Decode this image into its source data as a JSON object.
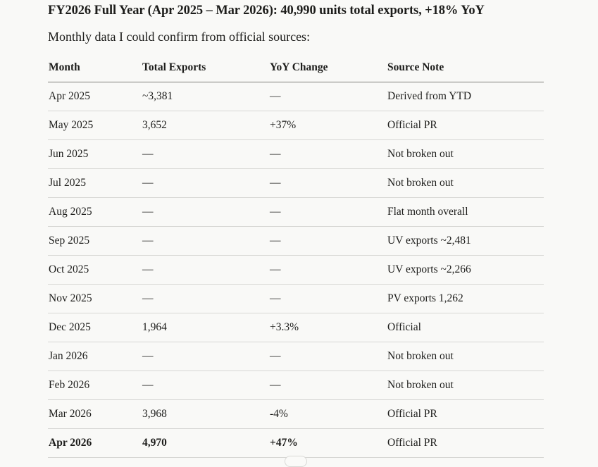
{
  "heading": "FY2026 Full Year (Apr 2025 – Mar 2026): 40,990 units total exports, +18% YoY",
  "intro": "Monthly data I could confirm from official sources:",
  "table": {
    "headers": [
      "Month",
      "Total Exports",
      "YoY Change",
      "Source Note"
    ],
    "rows": [
      {
        "month": "Apr 2025",
        "exports": "~3,381",
        "yoy": "—",
        "note": "Derived from YTD"
      },
      {
        "month": "May 2025",
        "exports": "3,652",
        "yoy": "+37%",
        "note": "Official PR"
      },
      {
        "month": "Jun 2025",
        "exports": "—",
        "yoy": "—",
        "note": "Not broken out"
      },
      {
        "month": "Jul 2025",
        "exports": "—",
        "yoy": "—",
        "note": "Not broken out"
      },
      {
        "month": "Aug 2025",
        "exports": "—",
        "yoy": "—",
        "note": "Flat month overall"
      },
      {
        "month": "Sep 2025",
        "exports": "—",
        "yoy": "—",
        "note": "UV exports ~2,481"
      },
      {
        "month": "Oct 2025",
        "exports": "—",
        "yoy": "—",
        "note": "UV exports ~2,266"
      },
      {
        "month": "Nov 2025",
        "exports": "—",
        "yoy": "—",
        "note": "PV exports 1,262"
      },
      {
        "month": "Dec 2025",
        "exports": "1,964",
        "yoy": "+3.3%",
        "note": "Official"
      },
      {
        "month": "Jan 2026",
        "exports": "—",
        "yoy": "—",
        "note": "Not broken out"
      },
      {
        "month": "Feb 2026",
        "exports": "—",
        "yoy": "—",
        "note": "Not broken out"
      },
      {
        "month": "Mar 2026",
        "exports": "3,968",
        "yoy": "-4%",
        "note": "Official PR"
      },
      {
        "month": "Apr 2026",
        "exports": "4,970",
        "yoy": "+47%",
        "note": "Official PR",
        "bold": true
      }
    ]
  }
}
